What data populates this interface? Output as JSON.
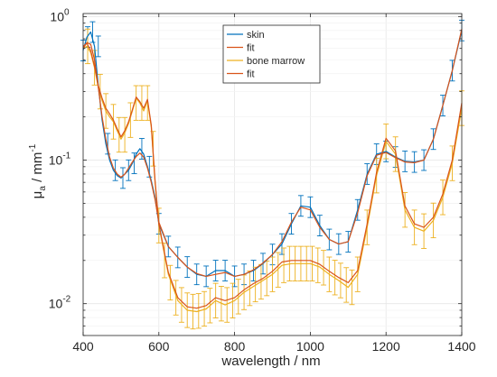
{
  "chart_data": {
    "type": "line",
    "x_scale": "linear",
    "y_scale": "log",
    "grid": true,
    "xlim": [
      400,
      1400
    ],
    "ylim": [
      0.006,
      1.05
    ],
    "xlabel": "wavelength / nm",
    "ylabel": {
      "main": "μ",
      "sub": "a",
      "unit": " / mm",
      "sup": "-1"
    },
    "x_ticks": [
      {
        "value": 400,
        "label": "400"
      },
      {
        "value": 600,
        "label": "600"
      },
      {
        "value": 800,
        "label": "800"
      },
      {
        "value": 1000,
        "label": "1000"
      },
      {
        "value": 1200,
        "label": "1200"
      },
      {
        "value": 1400,
        "label": "1400"
      }
    ],
    "y_ticks": [
      {
        "value": 0.01,
        "base": "10",
        "exp": "-2"
      },
      {
        "value": 0.1,
        "base": "10",
        "exp": "-1"
      },
      {
        "value": 1,
        "base": "10",
        "exp": "0"
      }
    ],
    "legend_position": "top-center",
    "series": [
      {
        "name": "skin",
        "kind": "line",
        "color": "#0072BD",
        "x": [
          400,
          410,
          420,
          430,
          440,
          450,
          460,
          470,
          480,
          490,
          500,
          510,
          520,
          530,
          540,
          550,
          560,
          570,
          580,
          590,
          600,
          625,
          650,
          675,
          700,
          725,
          750,
          775,
          800,
          825,
          850,
          875,
          900,
          925,
          950,
          975,
          1000,
          1025,
          1050,
          1075,
          1100,
          1125,
          1150,
          1175,
          1200,
          1225,
          1250,
          1275,
          1300,
          1325,
          1350,
          1375,
          1400
        ],
        "y": [
          0.58,
          0.72,
          0.78,
          0.62,
          0.33,
          0.19,
          0.13,
          0.1,
          0.085,
          0.078,
          0.075,
          0.08,
          0.085,
          0.095,
          0.11,
          0.12,
          0.11,
          0.09,
          0.072,
          0.055,
          0.036,
          0.025,
          0.021,
          0.018,
          0.016,
          0.0155,
          0.017,
          0.017,
          0.0155,
          0.016,
          0.017,
          0.019,
          0.022,
          0.026,
          0.036,
          0.048,
          0.047,
          0.035,
          0.028,
          0.026,
          0.027,
          0.045,
          0.08,
          0.11,
          0.115,
          0.105,
          0.098,
          0.097,
          0.1,
          0.14,
          0.24,
          0.42,
          0.8
        ]
      },
      {
        "name": "fit",
        "kind": "line",
        "color": "#D95319",
        "x": [
          400,
          410,
          420,
          430,
          440,
          450,
          460,
          470,
          480,
          490,
          500,
          510,
          520,
          530,
          540,
          550,
          560,
          570,
          580,
          590,
          600,
          625,
          650,
          675,
          700,
          725,
          750,
          775,
          800,
          825,
          850,
          875,
          900,
          925,
          950,
          975,
          1000,
          1025,
          1050,
          1075,
          1100,
          1125,
          1150,
          1175,
          1200,
          1225,
          1250,
          1275,
          1300,
          1325,
          1350,
          1375,
          1400
        ],
        "y": [
          0.6,
          0.66,
          0.64,
          0.5,
          0.32,
          0.2,
          0.14,
          0.105,
          0.088,
          0.08,
          0.076,
          0.08,
          0.088,
          0.097,
          0.106,
          0.112,
          0.105,
          0.088,
          0.07,
          0.053,
          0.037,
          0.025,
          0.021,
          0.018,
          0.0162,
          0.0155,
          0.016,
          0.0165,
          0.0155,
          0.016,
          0.0172,
          0.0192,
          0.022,
          0.027,
          0.037,
          0.047,
          0.045,
          0.034,
          0.028,
          0.026,
          0.027,
          0.043,
          0.078,
          0.108,
          0.113,
          0.104,
          0.097,
          0.096,
          0.1,
          0.14,
          0.24,
          0.42,
          0.82
        ]
      },
      {
        "name": "bone marrow",
        "kind": "line",
        "color": "#EDB120",
        "x": [
          400,
          410,
          420,
          430,
          440,
          450,
          460,
          470,
          480,
          490,
          500,
          510,
          520,
          530,
          540,
          550,
          560,
          570,
          580,
          590,
          600,
          625,
          650,
          675,
          700,
          725,
          750,
          775,
          800,
          825,
          850,
          875,
          900,
          925,
          950,
          975,
          1000,
          1025,
          1050,
          1075,
          1100,
          1125,
          1150,
          1175,
          1200,
          1225,
          1250,
          1275,
          1300,
          1325,
          1350,
          1375,
          1400
        ],
        "y": [
          0.6,
          0.62,
          0.56,
          0.44,
          0.32,
          0.26,
          0.22,
          0.2,
          0.185,
          0.16,
          0.14,
          0.155,
          0.18,
          0.22,
          0.27,
          0.25,
          0.22,
          0.26,
          0.17,
          0.07,
          0.035,
          0.016,
          0.0105,
          0.009,
          0.0088,
          0.0092,
          0.0105,
          0.0098,
          0.0105,
          0.012,
          0.0132,
          0.0145,
          0.016,
          0.0185,
          0.019,
          0.019,
          0.019,
          0.018,
          0.016,
          0.0145,
          0.013,
          0.016,
          0.034,
          0.078,
          0.135,
          0.11,
          0.045,
          0.034,
          0.032,
          0.038,
          0.055,
          0.095,
          0.23
        ]
      },
      {
        "name": "fit",
        "kind": "line",
        "color": "#D95319",
        "x": [
          400,
          410,
          420,
          430,
          440,
          450,
          460,
          470,
          480,
          490,
          500,
          510,
          520,
          530,
          540,
          550,
          560,
          570,
          580,
          590,
          600,
          625,
          650,
          675,
          700,
          725,
          750,
          775,
          800,
          825,
          850,
          875,
          900,
          925,
          950,
          975,
          1000,
          1025,
          1050,
          1075,
          1100,
          1125,
          1150,
          1175,
          1200,
          1225,
          1250,
          1275,
          1300,
          1325,
          1350,
          1375,
          1400
        ],
        "y": [
          0.62,
          0.65,
          0.58,
          0.45,
          0.33,
          0.27,
          0.23,
          0.21,
          0.19,
          0.165,
          0.145,
          0.16,
          0.185,
          0.225,
          0.275,
          0.255,
          0.23,
          0.265,
          0.175,
          0.072,
          0.036,
          0.0165,
          0.011,
          0.0095,
          0.0093,
          0.0097,
          0.011,
          0.0105,
          0.011,
          0.0125,
          0.0138,
          0.015,
          0.0168,
          0.0195,
          0.02,
          0.02,
          0.02,
          0.0188,
          0.0168,
          0.0152,
          0.014,
          0.017,
          0.036,
          0.082,
          0.142,
          0.116,
          0.048,
          0.036,
          0.034,
          0.04,
          0.058,
          0.1,
          0.25
        ]
      }
    ],
    "errorbars": [
      {
        "series": "skin",
        "color": "#0072BD",
        "x": [
          400,
          412,
          425,
          440,
          465,
          485,
          505,
          520,
          535,
          555,
          575,
          600,
          625,
          650,
          675,
          700,
          725,
          750,
          775,
          800,
          825,
          850,
          875,
          900,
          925,
          950,
          975,
          1000,
          1025,
          1050,
          1075,
          1100,
          1125,
          1150,
          1175,
          1200,
          1225,
          1250,
          1275,
          1300,
          1325,
          1350,
          1375,
          1400
        ],
        "y": [
          0.58,
          0.72,
          0.78,
          0.62,
          0.13,
          0.085,
          0.075,
          0.085,
          0.095,
          0.12,
          0.09,
          0.036,
          0.025,
          0.021,
          0.018,
          0.016,
          0.0155,
          0.017,
          0.017,
          0.0155,
          0.016,
          0.017,
          0.019,
          0.022,
          0.026,
          0.036,
          0.048,
          0.047,
          0.035,
          0.028,
          0.026,
          0.027,
          0.045,
          0.08,
          0.11,
          0.115,
          0.105,
          0.098,
          0.097,
          0.1,
          0.14,
          0.24,
          0.42,
          0.8
        ],
        "err_rel": 0.18
      },
      {
        "series": "bone marrow",
        "color": "#EDB120",
        "x": [
          412,
          430,
          445,
          460,
          480,
          495,
          510,
          525,
          540,
          555,
          570,
          585,
          600,
          615,
          630,
          645,
          660,
          675,
          690,
          705,
          720,
          735,
          750,
          765,
          780,
          795,
          810,
          825,
          840,
          855,
          870,
          885,
          900,
          915,
          930,
          945,
          960,
          975,
          990,
          1005,
          1020,
          1035,
          1050,
          1065,
          1080,
          1095,
          1110,
          1125,
          1150,
          1175,
          1200,
          1225,
          1250,
          1275,
          1300,
          1325,
          1350,
          1375,
          1400
        ],
        "y": [
          0.62,
          0.44,
          0.3,
          0.22,
          0.185,
          0.15,
          0.15,
          0.19,
          0.25,
          0.25,
          0.25,
          0.12,
          0.035,
          0.02,
          0.014,
          0.011,
          0.0098,
          0.009,
          0.0088,
          0.0089,
          0.0092,
          0.0097,
          0.0105,
          0.01,
          0.0098,
          0.0105,
          0.0112,
          0.012,
          0.0128,
          0.0136,
          0.0142,
          0.015,
          0.016,
          0.0172,
          0.0185,
          0.019,
          0.019,
          0.019,
          0.019,
          0.019,
          0.0185,
          0.0178,
          0.016,
          0.0152,
          0.0145,
          0.0135,
          0.013,
          0.016,
          0.034,
          0.078,
          0.135,
          0.11,
          0.045,
          0.034,
          0.032,
          0.038,
          0.055,
          0.095,
          0.23
        ],
        "err_rel": 0.32
      }
    ]
  }
}
